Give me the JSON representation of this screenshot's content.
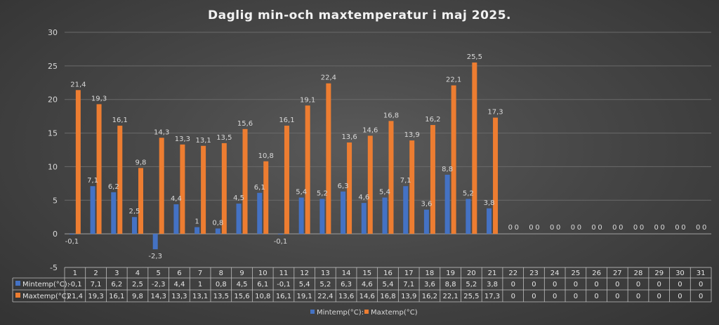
{
  "chart_data": {
    "type": "bar",
    "title": "Daglig min-och maxtemperatur i maj 2025.",
    "categories": [
      "1",
      "2",
      "3",
      "4",
      "5",
      "6",
      "7",
      "8",
      "9",
      "10",
      "11",
      "12",
      "13",
      "14",
      "15",
      "16",
      "17",
      "18",
      "19",
      "20",
      "21",
      "22",
      "23",
      "24",
      "25",
      "26",
      "27",
      "28",
      "29",
      "30",
      "31"
    ],
    "series": [
      {
        "name": "Mintemp(°C):",
        "color": "#4472c4",
        "values": [
          -0.1,
          7.1,
          6.2,
          2.5,
          -2.3,
          4.4,
          1,
          0.8,
          4.5,
          6.1,
          -0.1,
          5.4,
          5.2,
          6.3,
          4.6,
          5.4,
          7.1,
          3.6,
          8.8,
          5.2,
          3.8,
          0,
          0,
          0,
          0,
          0,
          0,
          0,
          0,
          0,
          0
        ],
        "labels": [
          "-0,1",
          "7,1",
          "6,2",
          "2,5",
          "-2,3",
          "4,4",
          "1",
          "0,8",
          "4,5",
          "6,1",
          "-0,1",
          "5,4",
          "5,2",
          "6,3",
          "4,6",
          "5,4",
          "7,1",
          "3,6",
          "8,8",
          "5,2",
          "3,8",
          "0",
          "0",
          "0",
          "0",
          "0",
          "0",
          "0",
          "0",
          "0",
          "0"
        ]
      },
      {
        "name": "Maxtemp(°C)",
        "color": "#ed7d31",
        "values": [
          21.4,
          19.3,
          16.1,
          9.8,
          14.3,
          13.3,
          13.1,
          13.5,
          15.6,
          10.8,
          16.1,
          19.1,
          22.4,
          13.6,
          14.6,
          16.8,
          13.9,
          16.2,
          22.1,
          25.5,
          17.3,
          0,
          0,
          0,
          0,
          0,
          0,
          0,
          0,
          0,
          0
        ],
        "labels": [
          "21,4",
          "19,3",
          "16,1",
          "9,8",
          "14,3",
          "13,3",
          "13,1",
          "13,5",
          "15,6",
          "10,8",
          "16,1",
          "19,1",
          "22,4",
          "13,6",
          "14,6",
          "16,8",
          "13,9",
          "16,2",
          "22,1",
          "25,5",
          "17,3",
          "0",
          "0",
          "0",
          "0",
          "0",
          "0",
          "0",
          "0",
          "0",
          "0"
        ]
      }
    ],
    "ylim": [
      -5,
      30
    ],
    "yticks": [
      -5,
      0,
      5,
      10,
      15,
      20,
      25,
      30
    ],
    "grid": true,
    "legend": "bottom",
    "data_table": true
  }
}
